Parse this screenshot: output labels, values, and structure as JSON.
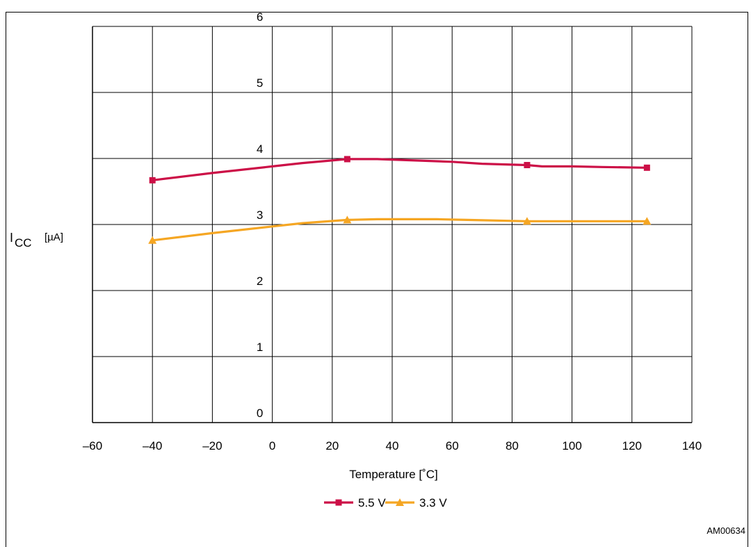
{
  "figure": {
    "title": "",
    "code": "AM00634"
  },
  "chart_data": {
    "type": "line",
    "title": "",
    "xlabel": "Temperature [˚C]",
    "ylabel_main": "I",
    "ylabel_sub": "CC",
    "ylabel_unit": "[µA]",
    "xlim": [
      -60,
      140
    ],
    "ylim": [
      0,
      6
    ],
    "xticks": [
      -60,
      -40,
      -20,
      0,
      20,
      40,
      60,
      80,
      100,
      120,
      140
    ],
    "xtick_labels": [
      "–60",
      "–40",
      "–20",
      "0",
      "20",
      "40",
      "60",
      "80",
      "100",
      "120",
      "140"
    ],
    "yticks": [
      0,
      1,
      2,
      3,
      4,
      5,
      6
    ],
    "grid": true,
    "legend_position": "bottom-center",
    "series": [
      {
        "name": "5.5 V",
        "color": "#cc1047",
        "marker": "square",
        "x": [
          -40,
          25,
          85,
          125
        ],
        "y": [
          3.67,
          3.99,
          3.9,
          3.86
        ],
        "curve_x": [
          -40,
          -20,
          0,
          10,
          25,
          35,
          60,
          70,
          85,
          90,
          100,
          110,
          125
        ],
        "curve_y": [
          3.67,
          3.78,
          3.88,
          3.93,
          3.99,
          3.99,
          3.95,
          3.92,
          3.9,
          3.88,
          3.88,
          3.87,
          3.86
        ]
      },
      {
        "name": "3.3 V",
        "color": "#f5a623",
        "marker": "triangle",
        "x": [
          -40,
          25,
          85,
          125
        ],
        "y": [
          2.76,
          3.07,
          3.05,
          3.05
        ],
        "curve_x": [
          -40,
          -20,
          0,
          10,
          25,
          35,
          55,
          65,
          85,
          100,
          125
        ],
        "curve_y": [
          2.76,
          2.87,
          2.97,
          3.02,
          3.07,
          3.08,
          3.08,
          3.07,
          3.05,
          3.05,
          3.05
        ]
      }
    ]
  }
}
